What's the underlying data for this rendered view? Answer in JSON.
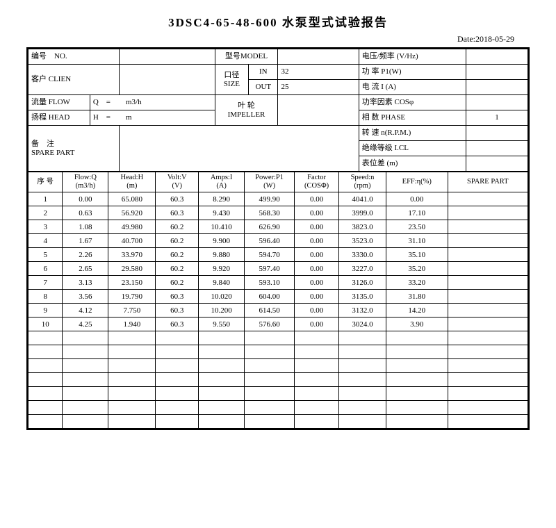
{
  "title": "3DSC4-65-48-600 水泵型式试验报告",
  "date_label": "Date:2018-05-29",
  "header": {
    "no_label": "编号　NO.",
    "model_label": "型号MODEL",
    "voltfreq_label": "电压/频率 (V/Hz)",
    "client_label": "客户 CLIEN",
    "bore_label": "口径",
    "size_label": "SIZE",
    "in_label": "IN",
    "out_label": "OUT",
    "in_val": "32",
    "out_val": "25",
    "power_label": "功  率   P1(W)",
    "current_label": "电  流   I (A)",
    "flow_label": "流量 FLOW",
    "flow_expr": "Q    =        m3/h",
    "impeller_label": "叶  轮",
    "impeller_label2": "IMPELLER",
    "pf_label": "功率因素  COSφ",
    "head_label": "扬程 HEAD",
    "head_expr": "H    =        m",
    "phase_label": "相  数    PHASE",
    "phase_val": "1",
    "spare_label": "备　注",
    "spare_label2": "SPARE PART",
    "speed_label": "转  速 n(R.P.M.)",
    "insul_label": "绝缘等级   I.CL",
    "meter_label": "表位差 (m)"
  },
  "cols": {
    "seq": "序  号",
    "flow": "Flow:Q\n(m3/h)",
    "head": "Head:H\n(m)",
    "volt": "Volt:V\n(V)",
    "amps": "Amps:I\n(A)",
    "power": "Power:P1\n(W)",
    "factor": "Factor\n(COSΦ)",
    "speed": "Speed:n\n(rpm)",
    "eff": "EFF:η(%)",
    "spare": "SPARE PART"
  },
  "rows": [
    {
      "n": "1",
      "flow": "0.00",
      "head": "65.080",
      "volt": "60.3",
      "amps": "8.290",
      "power": "499.90",
      "factor": "0.00",
      "speed": "4041.0",
      "eff": "0.00",
      "spare": ""
    },
    {
      "n": "2",
      "flow": "0.63",
      "head": "56.920",
      "volt": "60.3",
      "amps": "9.430",
      "power": "568.30",
      "factor": "0.00",
      "speed": "3999.0",
      "eff": "17.10",
      "spare": ""
    },
    {
      "n": "3",
      "flow": "1.08",
      "head": "49.980",
      "volt": "60.2",
      "amps": "10.410",
      "power": "626.90",
      "factor": "0.00",
      "speed": "3823.0",
      "eff": "23.50",
      "spare": ""
    },
    {
      "n": "4",
      "flow": "1.67",
      "head": "40.700",
      "volt": "60.2",
      "amps": "9.900",
      "power": "596.40",
      "factor": "0.00",
      "speed": "3523.0",
      "eff": "31.10",
      "spare": ""
    },
    {
      "n": "5",
      "flow": "2.26",
      "head": "33.970",
      "volt": "60.2",
      "amps": "9.880",
      "power": "594.70",
      "factor": "0.00",
      "speed": "3330.0",
      "eff": "35.10",
      "spare": ""
    },
    {
      "n": "6",
      "flow": "2.65",
      "head": "29.580",
      "volt": "60.2",
      "amps": "9.920",
      "power": "597.40",
      "factor": "0.00",
      "speed": "3227.0",
      "eff": "35.20",
      "spare": ""
    },
    {
      "n": "7",
      "flow": "3.13",
      "head": "23.150",
      "volt": "60.2",
      "amps": "9.840",
      "power": "593.10",
      "factor": "0.00",
      "speed": "3126.0",
      "eff": "33.20",
      "spare": ""
    },
    {
      "n": "8",
      "flow": "3.56",
      "head": "19.790",
      "volt": "60.3",
      "amps": "10.020",
      "power": "604.00",
      "factor": "0.00",
      "speed": "3135.0",
      "eff": "31.80",
      "spare": ""
    },
    {
      "n": "9",
      "flow": "4.12",
      "head": "7.750",
      "volt": "60.3",
      "amps": "10.200",
      "power": "614.50",
      "factor": "0.00",
      "speed": "3132.0",
      "eff": "14.20",
      "spare": ""
    },
    {
      "n": "10",
      "flow": "4.25",
      "head": "1.940",
      "volt": "60.3",
      "amps": "9.550",
      "power": "576.60",
      "factor": "0.00",
      "speed": "3024.0",
      "eff": "3.90",
      "spare": ""
    }
  ],
  "widths": {
    "seq": "48",
    "flow": "64",
    "head": "66",
    "volt": "60",
    "amps": "64",
    "power": "70",
    "factor": "62",
    "speed": "66",
    "eff": "86",
    "spare": "112"
  },
  "empties": 7
}
